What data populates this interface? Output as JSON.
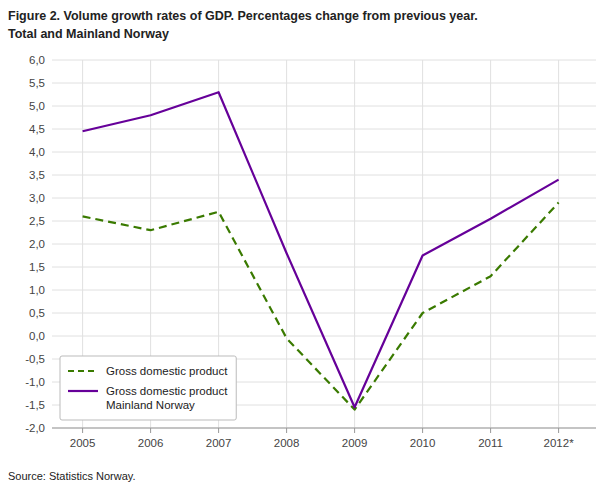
{
  "chart_data": {
    "type": "line",
    "title": "Figure 2. Volume growth rates of GDP. Percentages change from previous year.",
    "subtitle": "Total and Mainland Norway",
    "annotations": [
      "Source: Statistics Norway."
    ],
    "x": [
      2005,
      2006,
      2007,
      2008,
      2009,
      2010,
      2011,
      2012
    ],
    "series": [
      {
        "name": "Gross domestic product",
        "color": "#3a7a00",
        "line_style": "dashed",
        "values": [
          2.6,
          2.3,
          2.7,
          -0.05,
          -1.6,
          0.5,
          1.3,
          2.9
        ]
      },
      {
        "name": "Gross domestic product\nMainland Norway",
        "color": "#660099",
        "line_style": "solid",
        "values": [
          4.45,
          4.8,
          5.3,
          1.8,
          -1.55,
          1.75,
          2.55,
          3.4
        ]
      }
    ],
    "xlim": [
      2004.55,
      2012.55
    ],
    "xticks": [
      2005,
      2006,
      2007,
      2008,
      2009,
      2010,
      2011,
      {
        "value": 2012,
        "label": "2012*"
      }
    ],
    "ylim": [
      -2.0,
      6.0
    ],
    "yticks": [
      {
        "value": -2.0,
        "label": "-2,0"
      },
      {
        "value": -1.5,
        "label": "-1,5"
      },
      {
        "value": -1.0,
        "label": "-1,0"
      },
      {
        "value": -0.5,
        "label": "-0,5"
      },
      {
        "value": 0.0,
        "label": "0,0"
      },
      {
        "value": 0.5,
        "label": "0,5"
      },
      {
        "value": 1.0,
        "label": "1,0"
      },
      {
        "value": 1.5,
        "label": "1,5"
      },
      {
        "value": 2.0,
        "label": "2,0"
      },
      {
        "value": 2.5,
        "label": "2,5"
      },
      {
        "value": 3.0,
        "label": "3,0"
      },
      {
        "value": 3.5,
        "label": "3,5"
      },
      {
        "value": 4.0,
        "label": "4,0"
      },
      {
        "value": 4.5,
        "label": "4,5"
      },
      {
        "value": 5.0,
        "label": "5,0"
      },
      {
        "value": 5.5,
        "label": "5,5"
      },
      {
        "value": 6.0,
        "label": "6,0"
      }
    ],
    "grid": true,
    "legend": "lower left"
  }
}
